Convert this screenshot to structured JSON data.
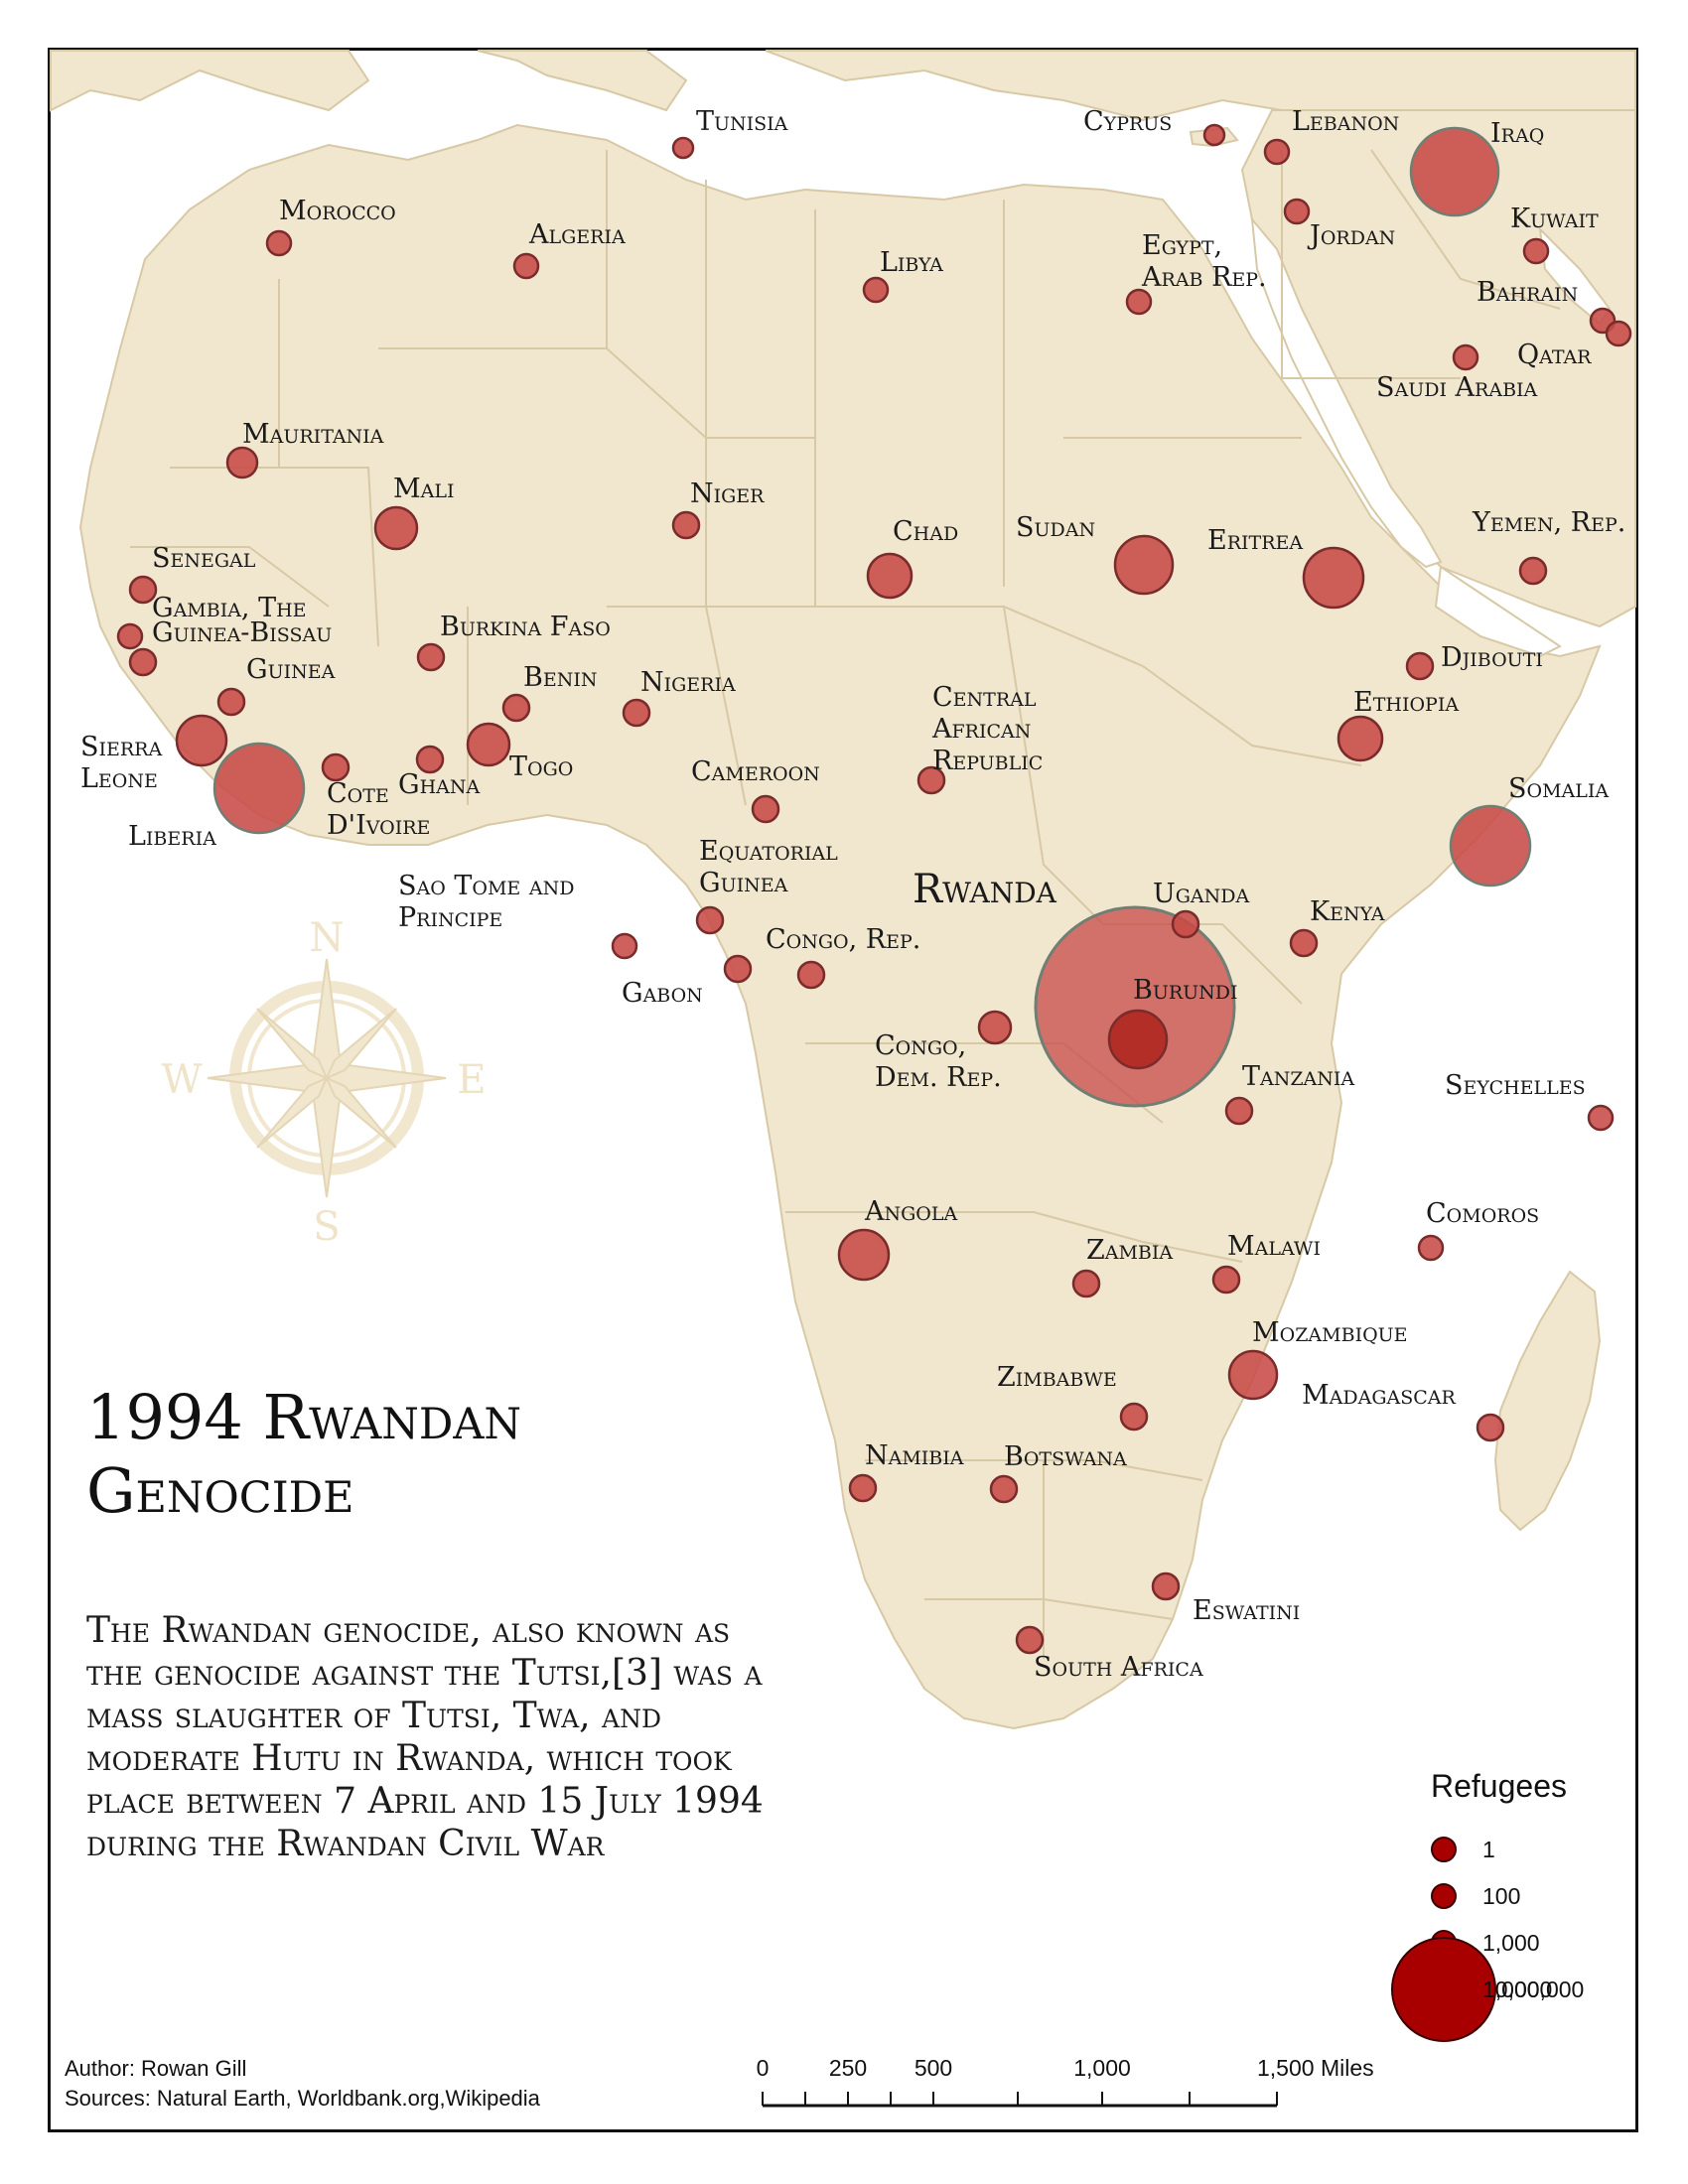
{
  "title": "1994 Rwandan Genocide",
  "description": "The Rwandan genocide, also known as the genocide against the Tutsi,[3] was a mass slaughter of Tutsi, Twa, and moderate Hutu in Rwanda, which took place between 7 April and 15 July 1994 during the Rwandan Civil War",
  "credits": {
    "author": "Author: Rowan Gill",
    "sources": "Sources: Natural Earth, Worldbank.org,Wikipedia"
  },
  "compass": {
    "n": "N",
    "s": "S",
    "e": "E",
    "w": "W",
    "icon": "compass-rose-icon"
  },
  "highlight_label": "Rwanda",
  "legend": {
    "title": "Refugees",
    "entries": [
      {
        "label": "1",
        "value": 1
      },
      {
        "label": "100",
        "value": 100
      },
      {
        "label": "1,000",
        "value": 1000
      },
      {
        "label": "10,000",
        "value": 10000
      },
      {
        "label": "1,000,000",
        "value": 1000000
      }
    ]
  },
  "scale_bar": {
    "labels": [
      "0",
      "250",
      "500",
      "1,000",
      "1,500 Miles"
    ]
  },
  "colors": {
    "land": "#f1e6ce",
    "border": "#d8c9a6",
    "water": "#ffffff",
    "symbol_fill": "#c74a47",
    "symbol_stroke": "#7a2b2b",
    "legend_fill": "#a80000"
  },
  "countries": [
    {
      "name": "Tunisia"
    },
    {
      "name": "Cyprus"
    },
    {
      "name": "Lebanon"
    },
    {
      "name": "Iraq"
    },
    {
      "name": "Morocco"
    },
    {
      "name": "Algeria"
    },
    {
      "name": "Libya"
    },
    {
      "name": "Egypt, Arab Rep."
    },
    {
      "name": "Jordan"
    },
    {
      "name": "Kuwait"
    },
    {
      "name": "Bahrain"
    },
    {
      "name": "Qatar"
    },
    {
      "name": "Saudi Arabia"
    },
    {
      "name": "Mauritania"
    },
    {
      "name": "Mali"
    },
    {
      "name": "Niger"
    },
    {
      "name": "Chad"
    },
    {
      "name": "Sudan"
    },
    {
      "name": "Eritrea"
    },
    {
      "name": "Yemen, Rep."
    },
    {
      "name": "Senegal"
    },
    {
      "name": "Gambia, The"
    },
    {
      "name": "Guinea-Bissau"
    },
    {
      "name": "Guinea"
    },
    {
      "name": "Burkina Faso"
    },
    {
      "name": "Djibouti"
    },
    {
      "name": "Benin"
    },
    {
      "name": "Nigeria"
    },
    {
      "name": "Central African Republic"
    },
    {
      "name": "Ethiopia"
    },
    {
      "name": "Sierra Leone"
    },
    {
      "name": "Liberia"
    },
    {
      "name": "Cote d'Ivoire"
    },
    {
      "name": "Ghana"
    },
    {
      "name": "Togo"
    },
    {
      "name": "Cameroon"
    },
    {
      "name": "Somalia"
    },
    {
      "name": "Equatorial Guinea"
    },
    {
      "name": "Sao Tome and Principe"
    },
    {
      "name": "Uganda"
    },
    {
      "name": "Kenya"
    },
    {
      "name": "Congo, Rep."
    },
    {
      "name": "Gabon"
    },
    {
      "name": "Burundi"
    },
    {
      "name": "Congo, Dem. Rep."
    },
    {
      "name": "Tanzania"
    },
    {
      "name": "Seychelles"
    },
    {
      "name": "Comoros"
    },
    {
      "name": "Angola"
    },
    {
      "name": "Zambia"
    },
    {
      "name": "Malawi"
    },
    {
      "name": "Mozambique"
    },
    {
      "name": "Zimbabwe"
    },
    {
      "name": "Madagascar"
    },
    {
      "name": "Namibia"
    },
    {
      "name": "Botswana"
    },
    {
      "name": "Eswatini"
    },
    {
      "name": "South Africa"
    }
  ]
}
